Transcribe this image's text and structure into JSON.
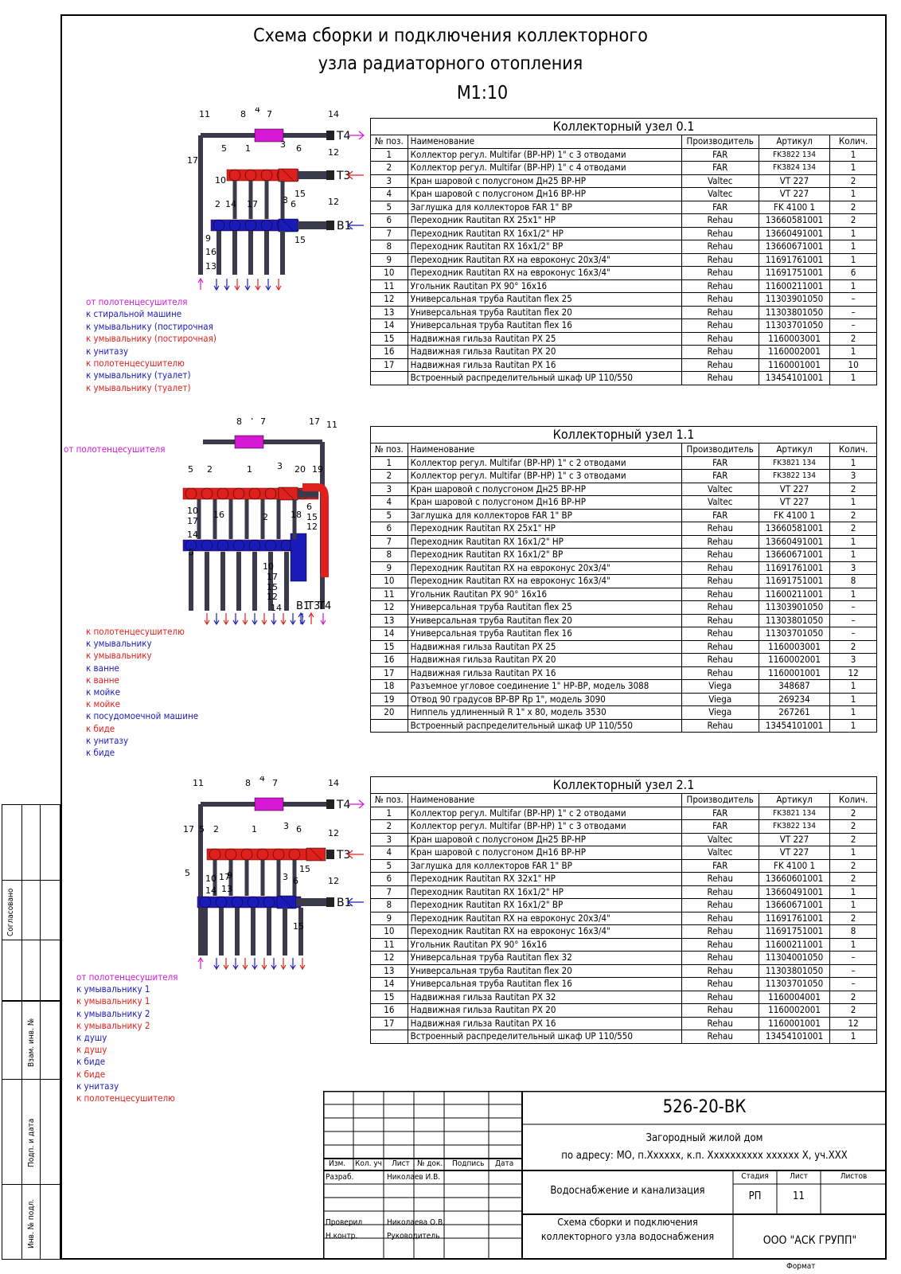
{
  "title_lines": [
    "Схема сборки и подключения коллекторного",
    "узла радиаторного отопления",
    "М1:10"
  ],
  "headers": [
    "№ поз.",
    "Наименование",
    "Производитель",
    "Артикул",
    "Колич."
  ],
  "tables": [
    {
      "caption": "Коллекторный узел 0.1",
      "rows": [
        [
          "1",
          "Коллектор регул. Multifar (ВР-НР) 1\" с 3 отводами",
          "FAR",
          "FK3822 134",
          "1"
        ],
        [
          "2",
          "Коллектор регул. Multifar (ВР-НР) 1\" с 4 отводами",
          "FAR",
          "FK3824 134",
          "1"
        ],
        [
          "3",
          "Кран шаровой с полусгоном Дн25 ВР-НР",
          "Valtec",
          "VT 227",
          "2"
        ],
        [
          "4",
          "Кран шаровой с полусгоном Дн16 ВР-НР",
          "Valtec",
          "VT 227",
          "1"
        ],
        [
          "5",
          "Заглушка для коллекторов FAR 1\" ВР",
          "FAR",
          "FK 4100 1",
          "2"
        ],
        [
          "6",
          "Переходник Rautitan RX 25х1\" НР",
          "Rehau",
          "13660581001",
          "2"
        ],
        [
          "7",
          "Переходник Rautitan RX 16х1/2\" НР",
          "Rehau",
          "13660491001",
          "1"
        ],
        [
          "8",
          "Переходник Rautitan RX 16х1/2\" ВР",
          "Rehau",
          "13660671001",
          "1"
        ],
        [
          "9",
          "Переходник Rautitan RX на евроконус 20х3/4\"",
          "Rehau",
          "11691761001",
          "1"
        ],
        [
          "10",
          "Переходник Rautitan RX на евроконус 16х3/4\"",
          "Rehau",
          "11691751001",
          "6"
        ],
        [
          "11",
          "Угольник Rautitan PX 90° 16х16",
          "Rehau",
          "11600211001",
          "1"
        ],
        [
          "12",
          "Универсальная труба  Rautitan flex 25",
          "Rehau",
          "11303901050",
          "–"
        ],
        [
          "13",
          "Универсальная труба  Rautitan flex 20",
          "Rehau",
          "11303801050",
          "–"
        ],
        [
          "14",
          "Универсальная труба  Rautitan flex 16",
          "Rehau",
          "11303701050",
          "–"
        ],
        [
          "15",
          "Надвижная гильза  Rautitan PX 25",
          "Rehau",
          "1160003001",
          "2"
        ],
        [
          "16",
          "Надвижная гильза  Rautitan PX 20",
          "Rehau",
          "1160002001",
          "1"
        ],
        [
          "17",
          "Надвижная гильза  Rautitan PX 16",
          "Rehau",
          "1160001001",
          "10"
        ],
        [
          "",
          "Встроенный распределительный шкаф UP 110/550",
          "Rehau",
          "13454101001",
          "1"
        ]
      ]
    },
    {
      "caption": "Коллекторный узел 1.1",
      "rows": [
        [
          "1",
          "Коллектор регул. Multifar (ВР-НР) 1\" с 2 отводами",
          "FAR",
          "FK3821 134",
          "1"
        ],
        [
          "2",
          "Коллектор регул. Multifar (ВР-НР) 1\" с 3 отводами",
          "FAR",
          "FK3822 134",
          "3"
        ],
        [
          "3",
          "Кран шаровой с полусгоном Дн25 ВР-НР",
          "Valtec",
          "VT 227",
          "2"
        ],
        [
          "4",
          "Кран шаровой с полусгоном Дн16 ВР-НР",
          "Valtec",
          "VT 227",
          "1"
        ],
        [
          "5",
          "Заглушка для коллекторов FAR 1\" ВР",
          "FAR",
          "FK 4100 1",
          "2"
        ],
        [
          "6",
          "Переходник Rautitan RX 25х1\" НР",
          "Rehau",
          "13660581001",
          "2"
        ],
        [
          "7",
          "Переходник Rautitan RX 16х1/2\" НР",
          "Rehau",
          "13660491001",
          "1"
        ],
        [
          "8",
          "Переходник Rautitan RX 16х1/2\" ВР",
          "Rehau",
          "13660671001",
          "1"
        ],
        [
          "9",
          "Переходник Rautitan RX на евроконус 20х3/4\"",
          "Rehau",
          "11691761001",
          "3"
        ],
        [
          "10",
          "Переходник Rautitan RX на евроконус 16х3/4\"",
          "Rehau",
          "11691751001",
          "8"
        ],
        [
          "11",
          "Угольник Rautitan PX 90° 16х16",
          "Rehau",
          "11600211001",
          "1"
        ],
        [
          "12",
          "Универсальная труба  Rautitan flex 25",
          "Rehau",
          "11303901050",
          "–"
        ],
        [
          "13",
          "Универсальная труба  Rautitan flex 20",
          "Rehau",
          "11303801050",
          "–"
        ],
        [
          "14",
          "Универсальная труба  Rautitan flex 16",
          "Rehau",
          "11303701050",
          "–"
        ],
        [
          "15",
          "Надвижная гильза  Rautitan PX 25",
          "Rehau",
          "1160003001",
          "2"
        ],
        [
          "16",
          "Надвижная гильза  Rautitan PX 20",
          "Rehau",
          "1160002001",
          "3"
        ],
        [
          "17",
          "Надвижная гильза  Rautitan PX 16",
          "Rehau",
          "1160001001",
          "12"
        ],
        [
          "18",
          "Разъемное угловое соединение 1\" НР-ВР, модель 3088",
          "Viega",
          "348687",
          "1"
        ],
        [
          "19",
          "Отвод 90 градусов ВР-ВР Rp 1\", модель 3090",
          "Viega",
          "269234",
          "1"
        ],
        [
          "20",
          "Ниппель удлиненный R 1\" х 80, модель 3530",
          "Viega",
          "267261",
          "1"
        ],
        [
          "",
          "Встроенный распределительный шкаф UP 110/550",
          "Rehau",
          "13454101001",
          "1"
        ]
      ]
    },
    {
      "caption": "Коллекторный узел 2.1",
      "rows": [
        [
          "1",
          "Коллектор регул. Multifar (ВР-НР) 1\" с 2 отводами",
          "FAR",
          "FK3821 134",
          "2"
        ],
        [
          "2",
          "Коллектор регул. Multifar (ВР-НР) 1\" с 3 отводами",
          "FAR",
          "FK3822 134",
          "2"
        ],
        [
          "3",
          "Кран шаровой с полусгоном Дн25 ВР-НР",
          "Valtec",
          "VT 227",
          "2"
        ],
        [
          "4",
          "Кран шаровой с полусгоном Дн16 ВР-НР",
          "Valtec",
          "VT 227",
          "1"
        ],
        [
          "5",
          "Заглушка для коллекторов FAR 1\" ВР",
          "FAR",
          "FK 4100 1",
          "2"
        ],
        [
          "6",
          "Переходник Rautitan RX 32х1\" НР",
          "Rehau",
          "13660601001",
          "2"
        ],
        [
          "7",
          "Переходник Rautitan RX 16х1/2\" НР",
          "Rehau",
          "13660491001",
          "1"
        ],
        [
          "8",
          "Переходник Rautitan RX 16х1/2\" ВР",
          "Rehau",
          "13660671001",
          "1"
        ],
        [
          "9",
          "Переходник Rautitan RX на евроконус 20х3/4\"",
          "Rehau",
          "11691761001",
          "2"
        ],
        [
          "10",
          "Переходник Rautitan RX на евроконус 16х3/4\"",
          "Rehau",
          "11691751001",
          "8"
        ],
        [
          "11",
          "Угольник Rautitan PX 90° 16х16",
          "Rehau",
          "11600211001",
          "1"
        ],
        [
          "12",
          "Универсальная труба  Rautitan flex 32",
          "Rehau",
          "11304001050",
          "–"
        ],
        [
          "13",
          "Универсальная труба  Rautitan flex 20",
          "Rehau",
          "11303801050",
          "–"
        ],
        [
          "14",
          "Универсальная труба  Rautitan flex 16",
          "Rehau",
          "11303701050",
          "–"
        ],
        [
          "15",
          "Надвижная гильза  Rautitan PX 32",
          "Rehau",
          "1160004001",
          "2"
        ],
        [
          "16",
          "Надвижная гильза  Rautitan PX 20",
          "Rehau",
          "1160002001",
          "2"
        ],
        [
          "17",
          "Надвижная гильза  Rautitan PX 16",
          "Rehau",
          "1160001001",
          "12"
        ],
        [
          "",
          "Встроенный распределительный шкаф UP 110/550",
          "Rehau",
          "13454101001",
          "1"
        ]
      ]
    }
  ],
  "diagram1": {
    "pipes": [
      "T4",
      "T3",
      "B1"
    ],
    "labels": [
      {
        "text": "от полотенцесушителя",
        "color": "mag"
      },
      {
        "text": "к стиральной машине",
        "color": "blue"
      },
      {
        "text": "к умывальнику (постирочная",
        "color": "blue"
      },
      {
        "text": "к умывальнику (постирочная)",
        "color": "red"
      },
      {
        "text": "к унитазу",
        "color": "blue"
      },
      {
        "text": "к полотенцесушителю",
        "color": "red"
      },
      {
        "text": "к умывальнику (туалет)",
        "color": "blue"
      },
      {
        "text": "к умывальнику (туалет)",
        "color": "red"
      }
    ]
  },
  "diagram2": {
    "pipes": [
      "B1",
      "T3",
      "T4"
    ],
    "inlet_label": "от полотенцесушителя",
    "labels": [
      {
        "text": "к полотенцесушителю",
        "color": "red"
      },
      {
        "text": "к умывальнику",
        "color": "blue"
      },
      {
        "text": "к умывальнику",
        "color": "red"
      },
      {
        "text": "к ванне",
        "color": "blue"
      },
      {
        "text": "к ванне",
        "color": "red"
      },
      {
        "text": "к мойке",
        "color": "blue"
      },
      {
        "text": "к мойке",
        "color": "red"
      },
      {
        "text": "к посудомоечной машине",
        "color": "blue"
      },
      {
        "text": "к биде",
        "color": "red"
      },
      {
        "text": "к унитазу",
        "color": "blue"
      },
      {
        "text": "к биде",
        "color": "blue"
      }
    ]
  },
  "diagram3": {
    "pipes": [
      "T4",
      "T3",
      "B1"
    ],
    "labels": [
      {
        "text": "от полотенцесушителя",
        "color": "mag"
      },
      {
        "text": "к умывальнику 1",
        "color": "blue"
      },
      {
        "text": "к умывальнику 1",
        "color": "red"
      },
      {
        "text": "к умывальнику 2",
        "color": "blue"
      },
      {
        "text": "к умывальнику 2",
        "color": "red"
      },
      {
        "text": "к душу",
        "color": "blue"
      },
      {
        "text": "к душу",
        "color": "red"
      },
      {
        "text": "к биде",
        "color": "blue"
      },
      {
        "text": "к биде",
        "color": "red"
      },
      {
        "text": "к унитазу",
        "color": "blue"
      },
      {
        "text": "к полотенцесушителю",
        "color": "red"
      }
    ]
  },
  "side": {
    "agreed": "Согласовано",
    "replace_inv": "Взам. инв. №",
    "sign_date": "Подп. и дата",
    "inv_orig": "Инв. № подл."
  },
  "stamp": {
    "code": "526-20-ВК",
    "object_line1": "Загородный жилой дом",
    "object_line2": "по адресу: МО, п.Хxxxxx, к.п. Хxxxxxxxxx xxxxxx X, уч.XXX",
    "col_izm": "Изм.",
    "col_kol": "Кол. уч",
    "col_list": "Лист",
    "col_doc": "№ док.",
    "col_sign": "Подпись",
    "col_date": "Дата",
    "razrab": "Разраб.",
    "razrab_name": "Николаев И.В.",
    "proveril": "Проверил",
    "proveril_name": "Николаева О.В.",
    "nkontr": "Н.контр.",
    "nkontr_name": "Руководитель",
    "section": "Водоснабжение и канализация",
    "sheet_title": "Схема сборки и подключения коллекторного узла водоснабжения",
    "stadia_h": "Стадия",
    "list_h": "Лист",
    "listov_h": "Листов",
    "stadia": "РП",
    "list": "11",
    "listov": "",
    "company": "ООО \"АСК ГРУПП\"",
    "format": "Формат"
  },
  "colors": {
    "hot": "#e0201c",
    "cold": "#1a1ab8",
    "tw": "#d418d4",
    "pipe": "#3a3a4a"
  }
}
